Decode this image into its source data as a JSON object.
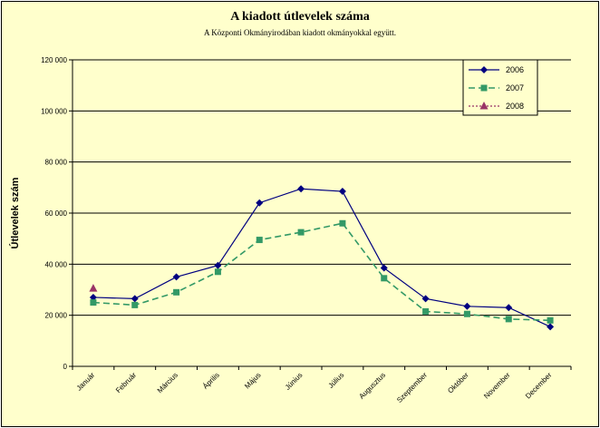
{
  "chart_data": {
    "type": "line",
    "title": "A  kiadott útlevelek száma",
    "subtitle": "A Központi Okmányirodában kiadott okmányokkal együtt.",
    "ylabel": "Útlevelek szám",
    "xlabel": "",
    "ylim": [
      0,
      120000
    ],
    "yticks": [
      0,
      20000,
      40000,
      60000,
      80000,
      100000,
      120000
    ],
    "ytick_labels": [
      "0",
      "20 000",
      "40 000",
      "60 000",
      "80 000",
      "100 000",
      "120 000"
    ],
    "grid": true,
    "legend_position": "top-right",
    "categories": [
      "Január",
      "Február",
      "Március",
      "Április",
      "Május",
      "Június",
      "Július",
      "Augusztus",
      "Szeptember",
      "Október",
      "November",
      "December"
    ],
    "series": [
      {
        "name": "2006",
        "color": "#000080",
        "marker": "diamond",
        "line_style": "solid",
        "values": [
          27000,
          26500,
          35000,
          39500,
          64000,
          69500,
          68500,
          38500,
          26500,
          23500,
          23000,
          15500
        ]
      },
      {
        "name": "2007",
        "color": "#339966",
        "marker": "square",
        "line_style": "dashed",
        "values": [
          25000,
          24000,
          29000,
          37000,
          49500,
          52500,
          56000,
          34500,
          21500,
          20500,
          18500,
          18000
        ]
      },
      {
        "name": "2008",
        "color": "#993366",
        "marker": "triangle",
        "line_style": "dotted",
        "values": [
          30500,
          null,
          null,
          null,
          null,
          null,
          null,
          null,
          null,
          null,
          null,
          null
        ]
      }
    ]
  }
}
